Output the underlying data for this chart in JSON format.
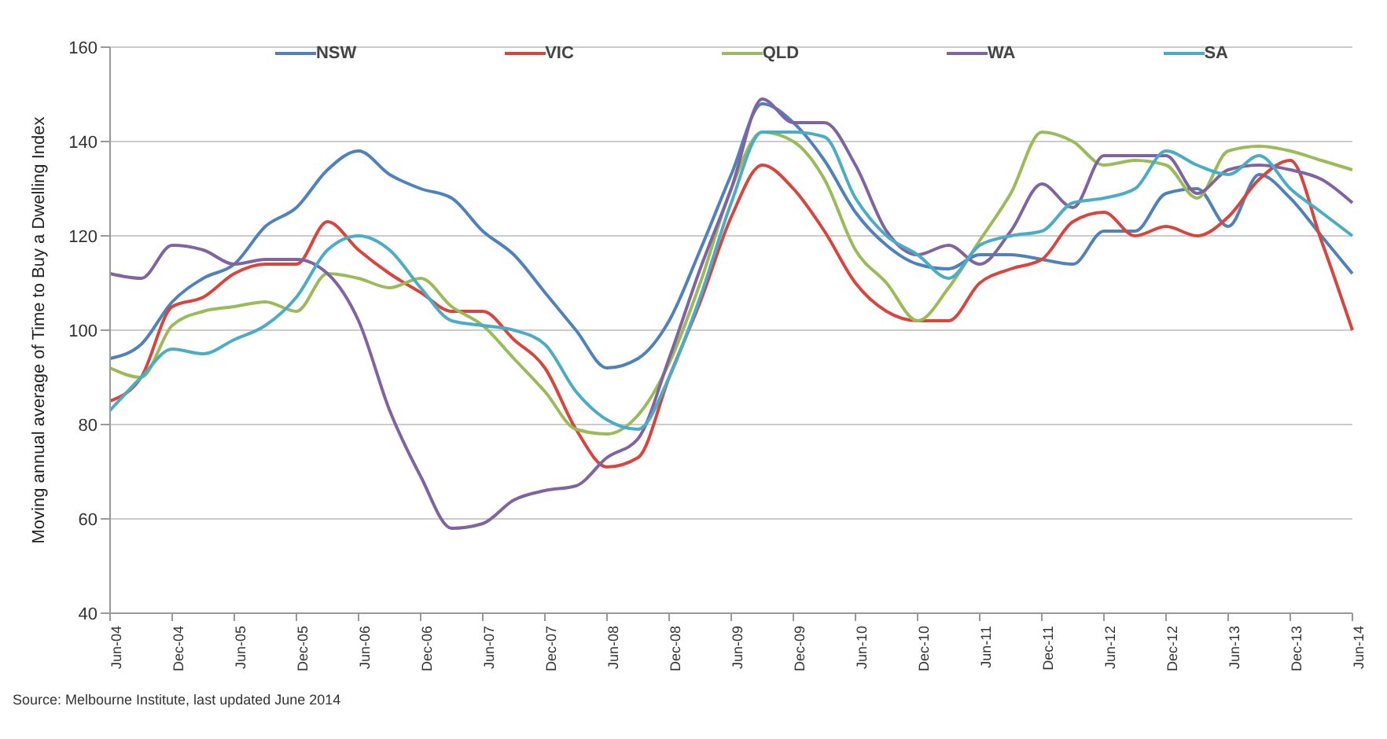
{
  "chart_data": {
    "type": "line",
    "ylabel": "Moving annual average of Time to Buy a Dwelling Index",
    "categories": [
      "Jun-04",
      null,
      "Dec-04",
      null,
      "Jun-05",
      null,
      "Dec-05",
      null,
      "Jun-06",
      null,
      "Dec-06",
      null,
      "Jun-07",
      null,
      "Dec-07",
      null,
      "Jun-08",
      null,
      "Dec-08",
      null,
      "Jun-09",
      null,
      "Dec-09",
      null,
      "Jun-10",
      null,
      "Dec-10",
      null,
      "Jun-11",
      null,
      "Dec-11",
      null,
      "Jun-12",
      null,
      "Dec-12",
      null,
      "Jun-13",
      null,
      "Dec-13",
      null,
      "Jun-14"
    ],
    "series": [
      {
        "name": "NSW",
        "color": "#4f81bd",
        "values": [
          94,
          97,
          106,
          111,
          114,
          122,
          126,
          134,
          138,
          133,
          130,
          128,
          121,
          116,
          108,
          100,
          92,
          94,
          102,
          117,
          133,
          148,
          144,
          136,
          125,
          118,
          114,
          113,
          116,
          116,
          115,
          114,
          121,
          121,
          129,
          130,
          122,
          133,
          128,
          120,
          112
        ]
      },
      {
        "name": "VIC",
        "color": "#d9453c",
        "values": [
          85,
          90,
          105,
          107,
          112,
          114,
          114,
          123,
          117,
          112,
          108,
          104,
          104,
          98,
          92,
          79,
          71,
          73,
          90,
          106,
          124,
          135,
          130,
          121,
          110,
          104,
          102,
          102,
          110,
          113,
          115,
          123,
          125,
          120,
          122,
          120,
          124,
          132,
          136,
          119,
          100
        ]
      },
      {
        "name": "QLD",
        "color": "#9bbb59",
        "values": [
          92,
          90,
          101,
          104,
          105,
          106,
          104,
          112,
          111,
          109,
          111,
          105,
          101,
          94,
          87,
          79,
          78,
          82,
          93,
          110,
          130,
          142,
          140,
          132,
          117,
          110,
          102,
          109,
          119,
          129,
          142,
          140,
          135,
          136,
          135,
          128,
          138,
          139,
          138,
          136,
          134
        ]
      },
      {
        "name": "WA",
        "color": "#8064a2",
        "values": [
          112,
          111,
          118,
          117,
          114,
          115,
          115,
          112,
          102,
          83,
          69,
          58,
          59,
          64,
          66,
          67,
          73,
          77,
          94,
          113,
          130,
          149,
          144,
          144,
          135,
          121,
          116,
          118,
          114,
          121,
          131,
          126,
          137,
          137,
          137,
          129,
          134,
          135,
          134,
          132,
          127
        ]
      },
      {
        "name": "SA",
        "color": "#4bacc6",
        "values": [
          83,
          90,
          96,
          95,
          98,
          101,
          107,
          117,
          120,
          117,
          109,
          102,
          101,
          100,
          97,
          87,
          81,
          79,
          90,
          107,
          127,
          142,
          142,
          141,
          128,
          120,
          116,
          111,
          118,
          120,
          121,
          127,
          128,
          130,
          138,
          135,
          133,
          137,
          130,
          125,
          120
        ]
      }
    ],
    "ylim": [
      40,
      160
    ],
    "yticks": [
      40,
      60,
      80,
      100,
      120,
      140,
      160
    ],
    "grid": "y",
    "legend": "top",
    "marker": "none",
    "line_style": "solid",
    "annotations": [
      "Source: Melbourne Institute, last updated  June 2014"
    ]
  }
}
